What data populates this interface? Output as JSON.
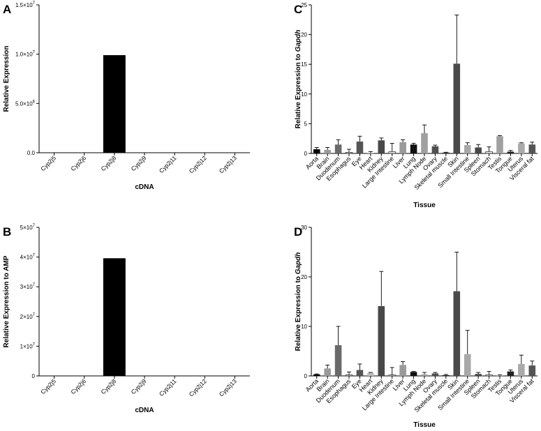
{
  "chart_data": [
    {
      "id": "A",
      "type": "bar",
      "panel_label": "A",
      "ylabel": "Relative Expression",
      "xlabel": "cDNA",
      "ylim": [
        0,
        15000000
      ],
      "ytick_values": [
        0,
        5000000,
        10000000,
        15000000
      ],
      "ytick_labels": [
        {
          "base": "0.0",
          "exp": ""
        },
        {
          "base": "5.0×10",
          "exp": "6"
        },
        {
          "base": "1.0×10",
          "exp": "7"
        },
        {
          "base": "1.5×10",
          "exp": "7"
        }
      ],
      "categories": [
        "Cyp2j5",
        "Cyp2j6",
        "Cyp2j8",
        "Cyp2j9",
        "Cyp2j11",
        "Cyp2j12",
        "Cyp2j13"
      ],
      "values": [
        0,
        0,
        9900000,
        0,
        0,
        0,
        0
      ],
      "bar_colors": [
        "#000000",
        "#000000",
        "#000000",
        "#000000",
        "#000000",
        "#000000",
        "#000000"
      ]
    },
    {
      "id": "B",
      "type": "bar",
      "panel_label": "B",
      "ylabel": "Relative Expression to AMP",
      "xlabel": "cDNA",
      "ylim": [
        0,
        50000000
      ],
      "ytick_values": [
        0,
        10000000,
        20000000,
        30000000,
        40000000,
        50000000
      ],
      "ytick_labels": [
        {
          "base": "0",
          "exp": ""
        },
        {
          "base": "1×10",
          "exp": "7"
        },
        {
          "base": "2×10",
          "exp": "7"
        },
        {
          "base": "3×10",
          "exp": "7"
        },
        {
          "base": "4×10",
          "exp": "7"
        },
        {
          "base": "5×10",
          "exp": "7"
        }
      ],
      "categories": [
        "Cyp2j5",
        "Cyp2j6",
        "Cyp2j8",
        "Cyp2j9",
        "Cyp2j11",
        "Cyp2j12",
        "Cyp2j13"
      ],
      "values": [
        0,
        0,
        39600000,
        0,
        0,
        0,
        0
      ],
      "bar_colors": [
        "#000000",
        "#000000",
        "#000000",
        "#000000",
        "#000000",
        "#000000",
        "#000000"
      ]
    },
    {
      "id": "C",
      "type": "bar",
      "panel_label": "C",
      "ylabel_prefix": "Relative Expression to ",
      "ylabel_gene": "Gapdh",
      "xlabel": "Tissue",
      "ylim": [
        0,
        25
      ],
      "ytick_values": [
        0,
        5,
        10,
        15,
        20,
        25
      ],
      "ytick_labels": [
        {
          "base": "0"
        },
        {
          "base": "5"
        },
        {
          "base": "10"
        },
        {
          "base": "15"
        },
        {
          "base": "20"
        },
        {
          "base": "25"
        }
      ],
      "categories": [
        "Aorta",
        "Brain",
        "Duodenum",
        "Esophagus",
        "Eye",
        "Heart",
        "Kidney",
        "Large Intestine",
        "Liver",
        "Lung",
        "Lymph Node",
        "Ovary",
        "Skeletal muscle",
        "Skin",
        "Small Intestine",
        "Spleen",
        "Stomach",
        "Testis",
        "Tongue",
        "Uterus",
        "Visceral fat"
      ],
      "values": [
        0.7,
        0.6,
        1.5,
        0.2,
        2.0,
        0.1,
        2.2,
        0.3,
        1.9,
        1.5,
        3.4,
        1.2,
        0.1,
        15.1,
        1.4,
        1.0,
        0.3,
        2.9,
        0.3,
        1.7,
        1.5
      ],
      "errors": [
        0.3,
        0.4,
        0.8,
        0.5,
        0.9,
        0.2,
        0.4,
        1.4,
        0.4,
        0.2,
        1.4,
        0.2,
        0.1,
        8.2,
        0.4,
        0.5,
        0.8,
        0.1,
        0.2,
        0.1,
        0.4
      ],
      "bar_colors": [
        "#000000",
        "#9a9a9a",
        "#6a6a6a",
        "#dddddd",
        "#555555",
        "#bbbbbb",
        "#484848",
        "#eeeeee",
        "#9a9a9a",
        "#111111",
        "#a0a0a0",
        "#505050",
        "#cccccc",
        "#4a4a4a",
        "#a8a8a8",
        "#484848",
        "#eeeeee",
        "#a0a0a0",
        "#222222",
        "#aaaaaa",
        "#555555"
      ]
    },
    {
      "id": "D",
      "type": "bar",
      "panel_label": "D",
      "ylabel_prefix": "Relative Expression to ",
      "ylabel_gene": "Gapdh",
      "xlabel": "Tissue",
      "ylim": [
        0,
        30
      ],
      "ytick_values": [
        0,
        10,
        20,
        30
      ],
      "ytick_labels": [
        {
          "base": "0"
        },
        {
          "base": "10"
        },
        {
          "base": "20"
        },
        {
          "base": "30"
        }
      ],
      "categories": [
        "Aorta",
        "Brain",
        "Duodenum",
        "Esophagus",
        "Eye",
        "Heart",
        "Kidney",
        "Large Intestine",
        "Liver",
        "Lung",
        "Lymph Node",
        "Ovary",
        "Skeletal muscle",
        "Skin",
        "Small Intestine",
        "Spleen",
        "Stomach",
        "Testis",
        "Tongue",
        "Uterus",
        "Visceral fat"
      ],
      "values": [
        0.3,
        1.5,
        6.2,
        0.2,
        1.2,
        0.6,
        14.1,
        0.2,
        2.2,
        0.8,
        0.3,
        0.5,
        0.1,
        17.1,
        4.4,
        0.4,
        0.2,
        0.1,
        0.9,
        2.4,
        2.1
      ],
      "errors": [
        0.1,
        0.7,
        3.8,
        0.6,
        1.2,
        0.1,
        7.0,
        1.5,
        0.7,
        0.1,
        0.4,
        0.2,
        0.2,
        7.9,
        4.8,
        0.3,
        0.7,
        0.1,
        0.3,
        1.8,
        0.9
      ],
      "bar_colors": [
        "#000000",
        "#9a9a9a",
        "#6a6a6a",
        "#dddddd",
        "#555555",
        "#bbbbbb",
        "#484848",
        "#eeeeee",
        "#9a9a9a",
        "#111111",
        "#a0a0a0",
        "#505050",
        "#cccccc",
        "#4a4a4a",
        "#a8a8a8",
        "#484848",
        "#eeeeee",
        "#a0a0a0",
        "#222222",
        "#aaaaaa",
        "#555555"
      ]
    }
  ]
}
